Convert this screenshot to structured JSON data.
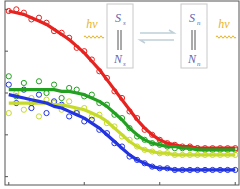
{
  "chart_data": {
    "type": "scatter",
    "tick_labels": false,
    "grid": false,
    "xlim": [
      -0.05,
      3.05
    ],
    "xticks": [
      0,
      1,
      2,
      3
    ],
    "ylim": [
      -0.05,
      1.05
    ],
    "yticks": [
      0,
      0.25,
      0.5,
      0.75,
      1
    ],
    "x": [
      0,
      0.1,
      0.2,
      0.3,
      0.4,
      0.5,
      0.6,
      0.7,
      0.8,
      0.9,
      1.0,
      1.1,
      1.2,
      1.3,
      1.4,
      1.5,
      1.6,
      1.7,
      1.8,
      1.9,
      2.0,
      2.1,
      2.2,
      2.3,
      2.4,
      2.5,
      2.6,
      2.7,
      2.8,
      2.9,
      3.0
    ],
    "series": [
      {
        "type": "scatter",
        "marker": "circle",
        "color": "#e8231f",
        "values": [
          0.99,
          1.0,
          0.98,
          0.94,
          0.95,
          0.92,
          0.87,
          0.86,
          0.83,
          0.77,
          0.75,
          0.7,
          0.63,
          0.59,
          0.51,
          0.47,
          0.39,
          0.35,
          0.28,
          0.25,
          0.22,
          0.2,
          0.19,
          0.18,
          0.18,
          0.17,
          0.17,
          0.17,
          0.17,
          0.17,
          0.17
        ]
      },
      {
        "type": "scatter",
        "marker": "circle",
        "color": "#22a020",
        "values": [
          0.6,
          0.48,
          0.56,
          0.44,
          0.57,
          0.5,
          0.55,
          0.47,
          0.53,
          0.52,
          0.48,
          0.49,
          0.44,
          0.43,
          0.37,
          0.35,
          0.29,
          0.24,
          0.22,
          0.2,
          0.19,
          0.18,
          0.17,
          0.17,
          0.17,
          0.17,
          0.16,
          0.16,
          0.16,
          0.16,
          0.16
        ]
      },
      {
        "type": "scatter",
        "marker": "circle",
        "color": "#c6da2a",
        "values": [
          0.38,
          0.5,
          0.4,
          0.47,
          0.36,
          0.46,
          0.44,
          0.4,
          0.45,
          0.39,
          0.41,
          0.36,
          0.37,
          0.32,
          0.3,
          0.24,
          0.22,
          0.18,
          0.16,
          0.15,
          0.14,
          0.14,
          0.13,
          0.13,
          0.13,
          0.13,
          0.13,
          0.13,
          0.13,
          0.13,
          0.13
        ]
      },
      {
        "type": "scatter",
        "marker": "circle",
        "color": "#2233e0",
        "values": [
          0.55,
          0.44,
          0.52,
          0.41,
          0.49,
          0.38,
          0.45,
          0.43,
          0.36,
          0.38,
          0.33,
          0.34,
          0.28,
          0.26,
          0.2,
          0.18,
          0.12,
          0.1,
          0.08,
          0.06,
          0.05,
          0.05,
          0.04,
          0.04,
          0.04,
          0.04,
          0.04,
          0.04,
          0.04,
          0.04,
          0.04
        ]
      },
      {
        "type": "line",
        "line_style": "solid",
        "color": "#e8231f",
        "values": [
          0.99,
          0.98,
          0.97,
          0.95,
          0.93,
          0.91,
          0.88,
          0.85,
          0.82,
          0.78,
          0.74,
          0.69,
          0.64,
          0.58,
          0.52,
          0.46,
          0.4,
          0.34,
          0.29,
          0.25,
          0.22,
          0.2,
          0.19,
          0.18,
          0.18,
          0.17,
          0.17,
          0.17,
          0.17,
          0.17,
          0.17
        ]
      },
      {
        "type": "line",
        "line_style": "solid",
        "color": "#22a020",
        "values": [
          0.52,
          0.52,
          0.52,
          0.52,
          0.52,
          0.52,
          0.52,
          0.51,
          0.51,
          0.5,
          0.49,
          0.47,
          0.45,
          0.42,
          0.38,
          0.34,
          0.29,
          0.25,
          0.22,
          0.2,
          0.19,
          0.18,
          0.18,
          0.17,
          0.17,
          0.16,
          0.16,
          0.16,
          0.16,
          0.16,
          0.16
        ]
      },
      {
        "type": "line",
        "line_style": "solid",
        "color": "#c6da2a",
        "values": [
          0.44,
          0.44,
          0.44,
          0.44,
          0.44,
          0.44,
          0.43,
          0.43,
          0.42,
          0.41,
          0.4,
          0.38,
          0.36,
          0.33,
          0.29,
          0.25,
          0.21,
          0.18,
          0.16,
          0.15,
          0.14,
          0.14,
          0.13,
          0.13,
          0.13,
          0.13,
          0.13,
          0.13,
          0.13,
          0.13,
          0.13
        ]
      },
      {
        "type": "line",
        "line_style": "solid",
        "color": "#2233e0",
        "values": [
          0.49,
          0.48,
          0.47,
          0.46,
          0.45,
          0.44,
          0.42,
          0.41,
          0.39,
          0.37,
          0.35,
          0.32,
          0.29,
          0.25,
          0.21,
          0.17,
          0.13,
          0.1,
          0.08,
          0.06,
          0.05,
          0.05,
          0.04,
          0.04,
          0.04,
          0.04,
          0.04,
          0.04,
          0.04,
          0.04,
          0.04
        ]
      }
    ],
    "annotations": [
      {
        "text": "hν"
      },
      {
        "text": "S",
        "sub": "s"
      },
      {
        "text": "N",
        "sub": "s"
      },
      {
        "text": "S",
        "sub": "n"
      },
      {
        "text": "N",
        "sub": "n"
      },
      {
        "text": "hν"
      }
    ]
  }
}
